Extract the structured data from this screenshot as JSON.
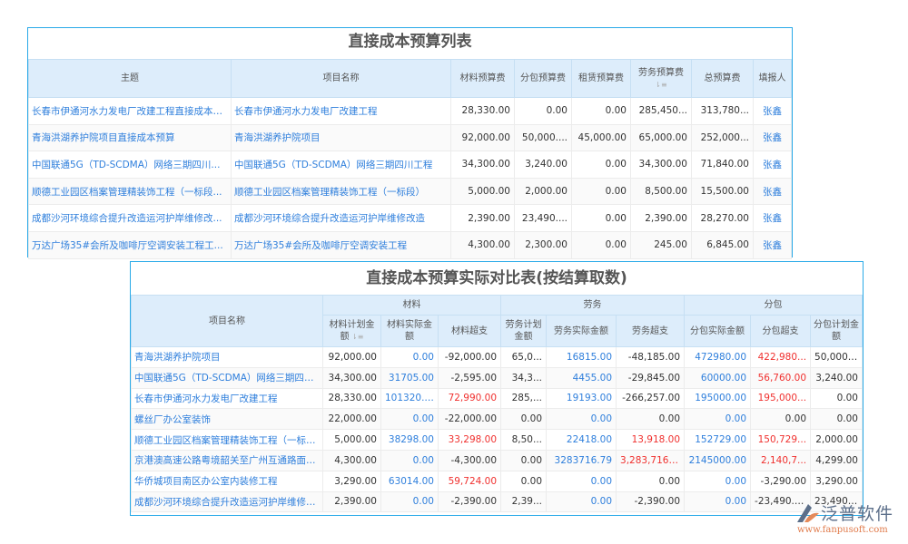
{
  "table1": {
    "title": "直接成本预算列表",
    "headers": [
      "主题",
      "项目名称",
      "材料预算费",
      "分包预算费",
      "租赁预算费",
      "劳务预算费",
      "总预算费",
      "填报人"
    ],
    "rows": [
      [
        "长春市伊通河水力发电厂改建工程直接成本预算",
        "长春市伊通河水力发电厂改建工程",
        "28,330.00",
        "0.00",
        "0.00",
        "285,450...",
        "313,780...",
        "张鑫"
      ],
      [
        "青海洪湖养护院项目直接成本预算",
        "青海洪湖养护院项目",
        "92,000.00",
        "50,000....",
        "45,000.00",
        "65,000.00",
        "252,000...",
        "张鑫"
      ],
      [
        "中国联通5G（TD-SCDMA）网络三期四川...",
        "中国联通5G（TD-SCDMA）网络三期四川工程",
        "34,300.00",
        "3,240.00",
        "0.00",
        "34,300.00",
        "71,840.00",
        "张鑫"
      ],
      [
        "顺德工业园区档案管理精装饰工程（一标段...",
        "顺德工业园区档案管理精装饰工程（一标段）",
        "5,000.00",
        "2,000.00",
        "0.00",
        "8,500.00",
        "15,500.00",
        "张鑫"
      ],
      [
        "成都沙河环境综合提升改造运河护岸维修改...",
        "成都沙河环境综合提升改造运河护岸维修改造",
        "2,390.00",
        "23,490....",
        "0.00",
        "2,390.00",
        "28,270.00",
        "张鑫"
      ],
      [
        "万达广场35#会所及咖啡厅空调安装工程工...",
        "万达广场35#会所及咖啡厅空调安装工程",
        "4,300.00",
        "2,300.00",
        "0.00",
        "245.00",
        "6,845.00",
        "张鑫"
      ]
    ]
  },
  "table2": {
    "title": "直接成本预算实际对比表(按结算取数)",
    "name_header": "项目名称",
    "groups": [
      "材料",
      "劳务",
      "分包"
    ],
    "subheaders": [
      "材料计划金额",
      "材料实际金额",
      "材料超支",
      "劳务计划金额",
      "劳务实际金额",
      "劳务超支",
      "分包实际金额",
      "分包超支",
      "分包计划金额"
    ],
    "rows": [
      [
        "青海洪湖养护院项目",
        "92,000.00",
        "0.00",
        "-92,000.00",
        "65,0...",
        "16815.00",
        "-48,185.00",
        "472980.00",
        "422,980...",
        "50,000.00"
      ],
      [
        "中国联通5G（TD-SCDMA）网络三期四川工程",
        "34,300.00",
        "31705.00",
        "-2,595.00",
        "34,3...",
        "4455.00",
        "-29,845.00",
        "60000.00",
        "56,760.00",
        "3,240.00"
      ],
      [
        "长春市伊通河水力发电厂改建工程",
        "28,330.00",
        "101320.00",
        "72,990.00",
        "285,...",
        "19193.00",
        "-266,257.00",
        "195000.00",
        "195,000...",
        "0.00"
      ],
      [
        "螺丝厂办公室装饰",
        "22,000.00",
        "0.00",
        "-22,000.00",
        "0.00",
        "0.00",
        "0.00",
        "0.00",
        "0.00",
        "0.00"
      ],
      [
        "顺德工业园区档案管理精装饰工程（一标段）",
        "5,000.00",
        "38298.00",
        "33,298.00",
        "8,50...",
        "22418.00",
        "13,918.00",
        "152729.00",
        "150,729...",
        "2,000.00"
      ],
      [
        "京港澳高速公路粤境韶关至广州互通路面改造中",
        "4,300.00",
        "0.00",
        "-4,300.00",
        "0.00",
        "3283716.79",
        "3,283,716.79",
        "2145000.00",
        "2,140,7...",
        "4,299.00"
      ],
      [
        "华侨城项目南区办公室内装修工程",
        "3,290.00",
        "63014.00",
        "59,724.00",
        "0.00",
        "0.00",
        "0.00",
        "0.00",
        "-3,290.00",
        "3,290.00"
      ],
      [
        "成都沙河环境综合提升改造运河护岸维修改造",
        "2,390.00",
        "0.00",
        "-2,390.00",
        "2,39...",
        "0.00",
        "-2,390.00",
        "0.00",
        "-23,490.00",
        "23,490.00"
      ]
    ]
  },
  "logo": {
    "name": "泛普软件",
    "url": "www.fanpusoft.com"
  },
  "colors": {
    "border": "#2aaae8",
    "header_bg": "#ddedfb",
    "link": "#2f7fdc",
    "overrun": "#f0302e"
  }
}
